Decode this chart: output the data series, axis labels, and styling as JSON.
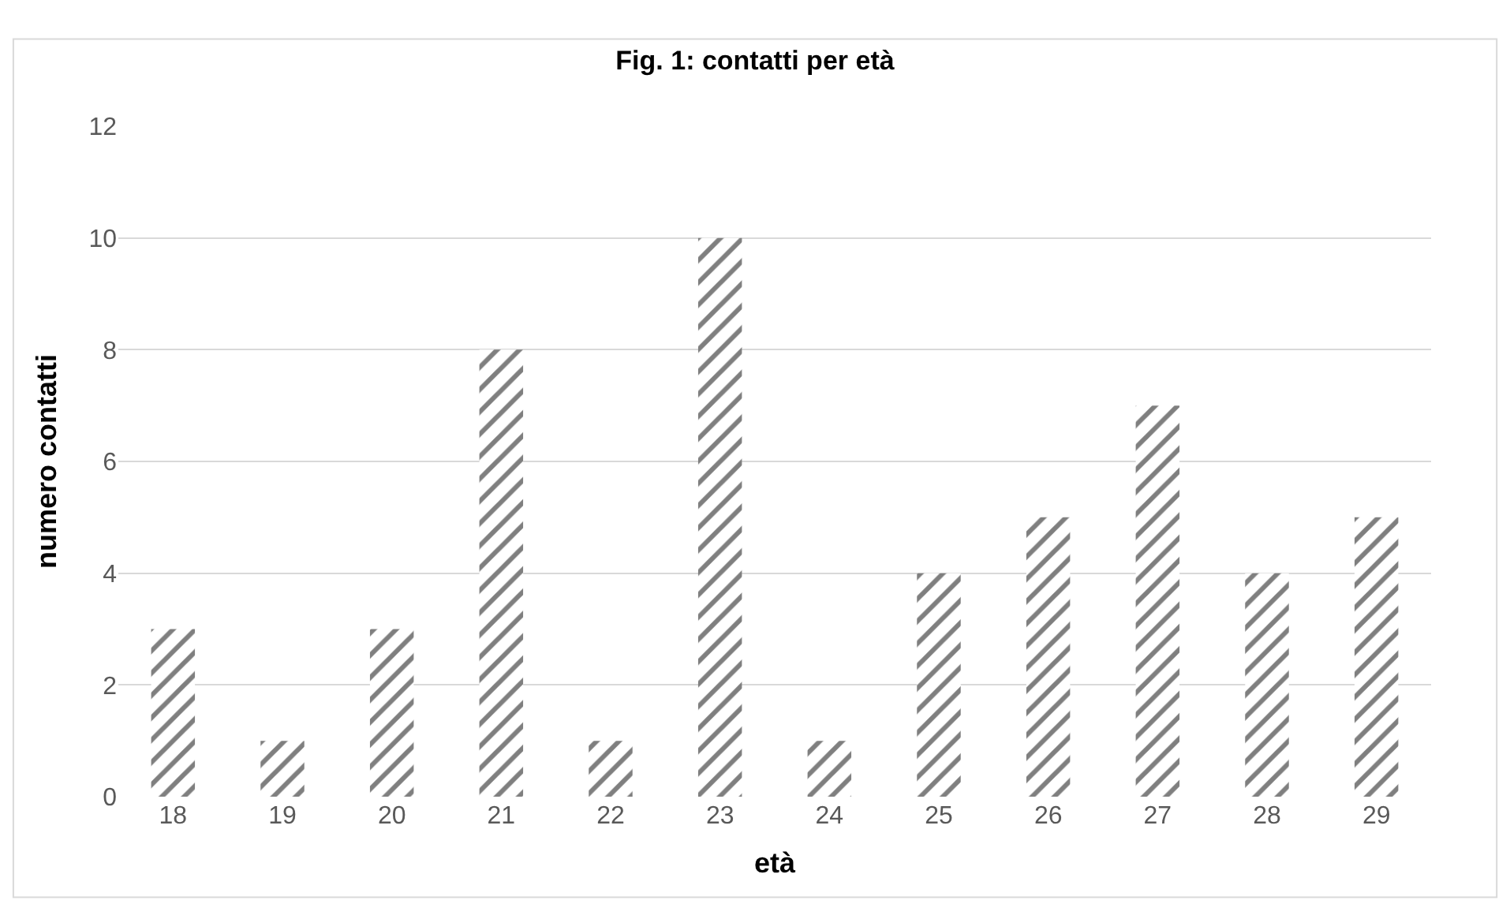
{
  "chart_data": {
    "type": "bar",
    "title": "Fig. 1: contatti per età",
    "xlabel": "età",
    "ylabel": "numero contatti",
    "categories": [
      "18",
      "19",
      "20",
      "21",
      "22",
      "23",
      "24",
      "25",
      "26",
      "27",
      "28",
      "29"
    ],
    "series": [
      {
        "color": "#000000",
        "values": [
          3,
          1,
          3,
          8,
          1,
          10,
          1,
          4,
          5,
          7,
          4,
          5
        ]
      }
    ],
    "ylim": [
      0,
      12
    ],
    "yticks": [
      0,
      2,
      4,
      6,
      8,
      10,
      12
    ],
    "grid": "y",
    "legend": false
  }
}
